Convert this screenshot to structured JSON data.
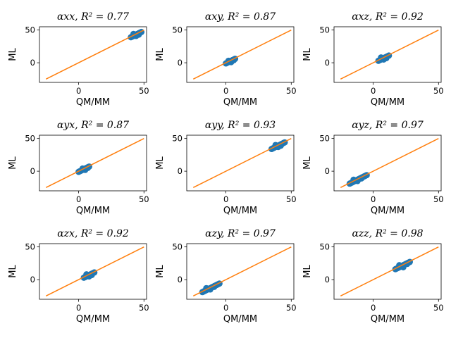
{
  "chart_data": [
    {
      "type": "scatter",
      "title": "αxx, R² = 0.77",
      "xlabel": "QM/MM",
      "ylabel": "ML",
      "xlim": [
        -30,
        52
      ],
      "ylim": [
        -30,
        55
      ],
      "xticks": [
        0,
        50
      ],
      "yticks": [
        0,
        50
      ],
      "xtick_labels": [
        "0",
        "50"
      ],
      "ytick_labels": [
        "0",
        "50"
      ],
      "grid": false,
      "series": [
        {
          "type": "scatter",
          "color": "#1f77b4",
          "x": [
            40,
            41,
            42,
            43,
            44,
            45,
            46,
            47,
            48,
            42,
            44,
            46
          ],
          "y": [
            39,
            40,
            41,
            42,
            43,
            44,
            45,
            46,
            47,
            44,
            41,
            43
          ]
        },
        {
          "type": "line",
          "color": "#ff7f0e",
          "x": [
            -25,
            50
          ],
          "y": [
            -25,
            50
          ]
        }
      ]
    },
    {
      "type": "scatter",
      "title": "αxy, R² = 0.87",
      "xlabel": "QM/MM",
      "ylabel": "ML",
      "xlim": [
        -30,
        52
      ],
      "ylim": [
        -30,
        55
      ],
      "xticks": [
        0,
        50
      ],
      "yticks": [
        0,
        50
      ],
      "xtick_labels": [
        "0",
        "50"
      ],
      "ytick_labels": [
        "0",
        "50"
      ],
      "grid": false,
      "series": [
        {
          "type": "scatter",
          "color": "#1f77b4",
          "x": [
            0,
            1,
            2,
            3,
            4,
            5,
            6,
            7,
            2,
            4,
            6
          ],
          "y": [
            -1,
            0,
            1,
            2,
            3,
            4,
            5,
            6,
            3,
            1,
            4
          ]
        },
        {
          "type": "line",
          "color": "#ff7f0e",
          "x": [
            -25,
            50
          ],
          "y": [
            -25,
            50
          ]
        }
      ]
    },
    {
      "type": "scatter",
      "title": "αxz, R² = 0.92",
      "xlabel": "QM/MM",
      "ylabel": "ML",
      "xlim": [
        -30,
        52
      ],
      "ylim": [
        -30,
        55
      ],
      "xticks": [
        0,
        50
      ],
      "yticks": [
        0,
        50
      ],
      "xtick_labels": [
        "0",
        "50"
      ],
      "ytick_labels": [
        "0",
        "50"
      ],
      "grid": false,
      "series": [
        {
          "type": "scatter",
          "color": "#1f77b4",
          "x": [
            4,
            5,
            6,
            7,
            8,
            9,
            10,
            11,
            12,
            6,
            8,
            10
          ],
          "y": [
            3,
            4,
            5,
            6,
            7,
            8,
            9,
            10,
            11,
            8,
            5,
            7
          ]
        },
        {
          "type": "line",
          "color": "#ff7f0e",
          "x": [
            -25,
            50
          ],
          "y": [
            -25,
            50
          ]
        }
      ]
    },
    {
      "type": "scatter",
      "title": "αyx, R² = 0.87",
      "xlabel": "QM/MM",
      "ylabel": "ML",
      "xlim": [
        -30,
        52
      ],
      "ylim": [
        -30,
        55
      ],
      "xticks": [
        0,
        50
      ],
      "yticks": [
        0,
        50
      ],
      "xtick_labels": [
        "0",
        "50"
      ],
      "ytick_labels": [
        "0",
        "50"
      ],
      "grid": false,
      "series": [
        {
          "type": "scatter",
          "color": "#1f77b4",
          "x": [
            0,
            1,
            2,
            3,
            4,
            5,
            6,
            7,
            8,
            3,
            5,
            7
          ],
          "y": [
            -1,
            0,
            1,
            2,
            3,
            4,
            5,
            6,
            7,
            4,
            2,
            5
          ]
        },
        {
          "type": "line",
          "color": "#ff7f0e",
          "x": [
            -25,
            50
          ],
          "y": [
            -25,
            50
          ]
        }
      ]
    },
    {
      "type": "scatter",
      "title": "αyy, R² = 0.93",
      "xlabel": "QM/MM",
      "ylabel": "ML",
      "xlim": [
        -30,
        52
      ],
      "ylim": [
        -30,
        55
      ],
      "xticks": [
        0,
        50
      ],
      "yticks": [
        0,
        50
      ],
      "xtick_labels": [
        "0",
        "50"
      ],
      "ytick_labels": [
        "0",
        "50"
      ],
      "grid": false,
      "series": [
        {
          "type": "scatter",
          "color": "#1f77b4",
          "x": [
            35,
            36,
            37,
            38,
            39,
            40,
            41,
            42,
            43,
            44,
            45,
            38,
            40,
            42
          ],
          "y": [
            34,
            35,
            36,
            37,
            38,
            39,
            40,
            41,
            42,
            43,
            44,
            40,
            37,
            39
          ]
        },
        {
          "type": "line",
          "color": "#ff7f0e",
          "x": [
            -25,
            50
          ],
          "y": [
            -25,
            50
          ]
        }
      ]
    },
    {
      "type": "scatter",
      "title": "αyz, R² = 0.97",
      "xlabel": "QM/MM",
      "ylabel": "ML",
      "xlim": [
        -30,
        52
      ],
      "ylim": [
        -30,
        55
      ],
      "xticks": [
        0,
        50
      ],
      "yticks": [
        0,
        50
      ],
      "xtick_labels": [
        "0",
        "50"
      ],
      "ytick_labels": [
        "0",
        "50"
      ],
      "grid": false,
      "series": [
        {
          "type": "scatter",
          "color": "#1f77b4",
          "x": [
            -18,
            -17,
            -16,
            -15,
            -14,
            -13,
            -12,
            -11,
            -10,
            -9,
            -8,
            -7,
            -6,
            -5,
            -15,
            -12,
            -9
          ],
          "y": [
            -19,
            -18,
            -17,
            -16,
            -15,
            -14,
            -13,
            -12,
            -11,
            -10,
            -9,
            -8,
            -7,
            -6,
            -13,
            -15,
            -11
          ]
        },
        {
          "type": "line",
          "color": "#ff7f0e",
          "x": [
            -25,
            50
          ],
          "y": [
            -25,
            50
          ]
        }
      ]
    },
    {
      "type": "scatter",
      "title": "αzx, R² = 0.92",
      "xlabel": "QM/MM",
      "ylabel": "ML",
      "xlim": [
        -30,
        52
      ],
      "ylim": [
        -30,
        55
      ],
      "xticks": [
        0,
        50
      ],
      "yticks": [
        0,
        50
      ],
      "xtick_labels": [
        "0",
        "50"
      ],
      "ytick_labels": [
        "0",
        "50"
      ],
      "grid": false,
      "series": [
        {
          "type": "scatter",
          "color": "#1f77b4",
          "x": [
            4,
            5,
            6,
            7,
            8,
            9,
            10,
            11,
            12,
            6,
            8,
            10
          ],
          "y": [
            3,
            4,
            5,
            6,
            7,
            8,
            9,
            10,
            11,
            8,
            5,
            7
          ]
        },
        {
          "type": "line",
          "color": "#ff7f0e",
          "x": [
            -25,
            50
          ],
          "y": [
            -25,
            50
          ]
        }
      ]
    },
    {
      "type": "scatter",
      "title": "αzy, R² = 0.97",
      "xlabel": "QM/MM",
      "ylabel": "ML",
      "xlim": [
        -30,
        52
      ],
      "ylim": [
        -30,
        55
      ],
      "xticks": [
        0,
        50
      ],
      "yticks": [
        0,
        50
      ],
      "xtick_labels": [
        "0",
        "50"
      ],
      "ytick_labels": [
        "0",
        "50"
      ],
      "grid": false,
      "series": [
        {
          "type": "scatter",
          "color": "#1f77b4",
          "x": [
            -18,
            -17,
            -16,
            -15,
            -14,
            -13,
            -12,
            -11,
            -10,
            -9,
            -8,
            -7,
            -6,
            -5,
            -15,
            -12,
            -9
          ],
          "y": [
            -19,
            -18,
            -17,
            -16,
            -15,
            -14,
            -13,
            -12,
            -11,
            -10,
            -9,
            -8,
            -7,
            -6,
            -13,
            -15,
            -11
          ]
        },
        {
          "type": "line",
          "color": "#ff7f0e",
          "x": [
            -25,
            50
          ],
          "y": [
            -25,
            50
          ]
        }
      ]
    },
    {
      "type": "scatter",
      "title": "αzz, R² = 0.98",
      "xlabel": "QM/MM",
      "ylabel": "ML",
      "xlim": [
        -30,
        52
      ],
      "ylim": [
        -30,
        55
      ],
      "xticks": [
        0,
        50
      ],
      "yticks": [
        0,
        50
      ],
      "xtick_labels": [
        "0",
        "50"
      ],
      "ytick_labels": [
        "0",
        "50"
      ],
      "grid": false,
      "series": [
        {
          "type": "scatter",
          "color": "#1f77b4",
          "x": [
            17,
            18,
            19,
            20,
            21,
            22,
            23,
            24,
            25,
            26,
            27,
            28,
            20,
            23,
            26
          ],
          "y": [
            16,
            17,
            18,
            19,
            20,
            21,
            22,
            23,
            24,
            25,
            26,
            27,
            22,
            19,
            24
          ]
        },
        {
          "type": "line",
          "color": "#ff7f0e",
          "x": [
            -25,
            50
          ],
          "y": [
            -25,
            50
          ]
        }
      ]
    }
  ]
}
